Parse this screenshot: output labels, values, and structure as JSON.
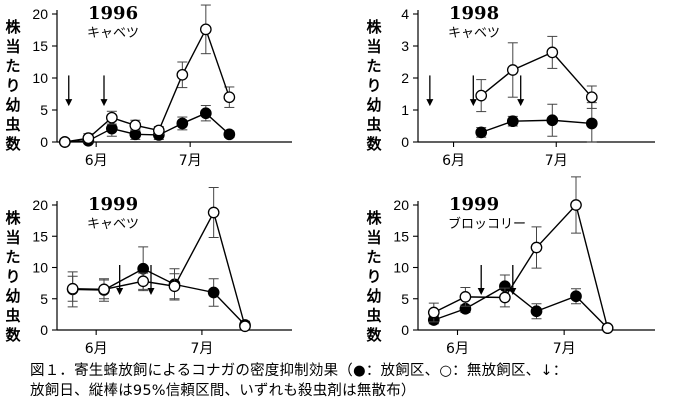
{
  "figure": {
    "caption_line1": "図１．寄生蜂放飼によるコナガの密度抑制効果（●：放飼区、○：無放飼区、↓：",
    "caption_line2": "放飼日、縦棒は95%信頼区間、いずれも殺虫剤は無散布）",
    "ylabel": "株当たり幼虫数",
    "month_labels": [
      "6月",
      "7月"
    ]
  },
  "chart_data": [
    {
      "type": "line",
      "title": "1996",
      "subtitle": "キャベツ",
      "ylim": [
        0,
        20
      ],
      "yticks": [
        0,
        5,
        10,
        15,
        20
      ],
      "xlim": [
        -1,
        29
      ],
      "month_ticks": [
        4,
        16
      ],
      "release_days": [
        0.5,
        5
      ],
      "series": [
        {
          "marker": "filled",
          "x": [
            0,
            3,
            6,
            9,
            12,
            15,
            18,
            21
          ],
          "y": [
            0,
            0.2,
            2.1,
            1.2,
            1.1,
            2.9,
            4.5,
            1.2
          ],
          "ci": [
            0.5,
            0.5,
            1.2,
            0.8,
            0.7,
            1.0,
            1.2,
            0.5
          ]
        },
        {
          "marker": "open",
          "x": [
            0,
            3,
            6,
            9,
            12,
            15,
            18,
            21
          ],
          "y": [
            0,
            0.6,
            3.8,
            2.6,
            1.8,
            10.5,
            17.6,
            7.0
          ],
          "ci": [
            0.3,
            0.7,
            1.0,
            0.8,
            0.6,
            2.0,
            3.8,
            1.6
          ]
        }
      ]
    },
    {
      "type": "line",
      "title": "1998",
      "subtitle": "キャベツ",
      "ylim": [
        0,
        4
      ],
      "yticks": [
        0,
        1,
        2,
        3,
        4
      ],
      "xlim": [
        -1,
        29
      ],
      "month_ticks": [
        3.5,
        16.5
      ],
      "release_days": [
        0.5,
        6,
        12
      ],
      "series": [
        {
          "marker": "filled",
          "x": [
            7,
            11,
            16,
            21
          ],
          "y": [
            0.3,
            0.65,
            0.68,
            0.58
          ],
          "ci": [
            0.15,
            0.15,
            0.5,
            0.65
          ]
        },
        {
          "marker": "open",
          "x": [
            7,
            11,
            16,
            21
          ],
          "y": [
            1.45,
            2.25,
            2.8,
            1.4
          ],
          "ci": [
            0.5,
            0.85,
            0.5,
            0.35
          ]
        }
      ]
    },
    {
      "type": "line",
      "title": "1999",
      "subtitle": "キャベツ",
      "ylim": [
        0,
        20
      ],
      "yticks": [
        0,
        5,
        10,
        15,
        20
      ],
      "xlim": [
        -1,
        29
      ],
      "month_ticks": [
        4,
        17.5
      ],
      "release_days": [
        7,
        11
      ],
      "series": [
        {
          "marker": "filled",
          "x": [
            1,
            5,
            10,
            14,
            19,
            23
          ],
          "y": [
            6.5,
            6.4,
            9.8,
            7.3,
            6.0,
            0.8
          ],
          "ci": [
            2.8,
            1.8,
            3.5,
            2.5,
            2.2,
            0.6
          ]
        },
        {
          "marker": "open",
          "x": [
            1,
            5,
            10,
            14,
            19,
            23
          ],
          "y": [
            6.6,
            6.5,
            7.8,
            7.0,
            18.8,
            0.6
          ],
          "ci": [
            2.0,
            1.5,
            1.3,
            2.0,
            4.0,
            0.5
          ]
        }
      ]
    },
    {
      "type": "line",
      "title": "1999",
      "subtitle": "ブロッコリー",
      "ylim": [
        0,
        20
      ],
      "yticks": [
        0,
        5,
        10,
        15,
        20
      ],
      "xlim": [
        -1,
        29
      ],
      "month_ticks": [
        4,
        17.5
      ],
      "release_days": [
        7,
        11
      ],
      "series": [
        {
          "marker": "filled",
          "x": [
            1,
            5,
            10,
            14,
            19,
            23
          ],
          "y": [
            1.6,
            3.4,
            7.0,
            3.0,
            5.4,
            0.3
          ],
          "ci": [
            0.6,
            0.6,
            1.8,
            1.2,
            1.2,
            0.3
          ]
        },
        {
          "marker": "open",
          "x": [
            1,
            5,
            10,
            14,
            19,
            23
          ],
          "y": [
            2.8,
            5.3,
            5.2,
            13.2,
            20.0,
            0.3
          ],
          "ci": [
            1.5,
            1.5,
            1.5,
            3.3,
            4.5,
            0.3
          ]
        }
      ]
    }
  ]
}
